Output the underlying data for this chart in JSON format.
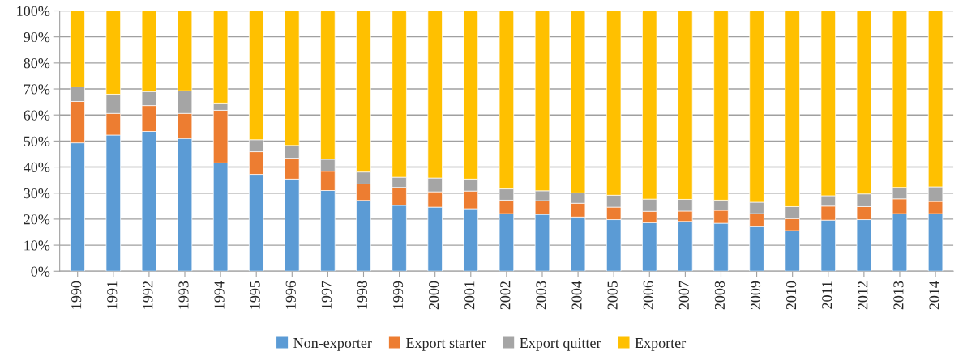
{
  "chart_data": {
    "type": "bar",
    "stacked": true,
    "categories": [
      "1990",
      "1991",
      "1992",
      "1993",
      "1994",
      "1995",
      "1996",
      "1997",
      "1998",
      "1999",
      "2000",
      "2001",
      "2002",
      "2003",
      "2004",
      "2005",
      "2006",
      "2007",
      "2008",
      "2009",
      "2010",
      "2011",
      "2012",
      "2013",
      "2014"
    ],
    "series": [
      {
        "name": "Non-exporter",
        "color": "#5b9bd5",
        "values": [
          49.3,
          52.3,
          53.7,
          51.0,
          41.6,
          37.2,
          35.4,
          31.0,
          27.2,
          25.3,
          24.6,
          24.0,
          22.1,
          21.8,
          20.8,
          19.8,
          18.6,
          19.1,
          18.4,
          17.1,
          15.6,
          19.6,
          19.8,
          22.1,
          22.1
        ]
      },
      {
        "name": "Export starter",
        "color": "#ed7d31",
        "values": [
          15.9,
          8.3,
          9.9,
          9.6,
          20.2,
          8.7,
          8.0,
          7.4,
          6.3,
          6.9,
          5.9,
          6.8,
          5.2,
          5.3,
          5.3,
          4.8,
          4.4,
          4.0,
          5.0,
          5.0,
          4.6,
          5.4,
          5.0,
          5.7,
          4.7
        ]
      },
      {
        "name": "Export quitter",
        "color": "#a5a5a5",
        "values": [
          5.6,
          7.4,
          5.4,
          8.7,
          2.8,
          4.6,
          4.9,
          4.6,
          4.6,
          3.9,
          5.3,
          4.6,
          4.3,
          3.8,
          4.0,
          4.6,
          4.7,
          4.5,
          3.9,
          4.4,
          4.6,
          4.0,
          4.9,
          4.4,
          5.6
        ]
      },
      {
        "name": "Exporter",
        "color": "#ffc000",
        "values": [
          29.2,
          32.0,
          31.0,
          30.7,
          35.4,
          49.5,
          51.7,
          57.0,
          61.9,
          63.9,
          64.2,
          64.6,
          68.4,
          69.1,
          69.9,
          70.8,
          72.3,
          72.4,
          72.7,
          73.5,
          75.2,
          71.0,
          70.3,
          67.8,
          67.6
        ]
      }
    ],
    "ylim": [
      0,
      100
    ],
    "yticks": [
      {
        "value": 0,
        "label": "0%"
      },
      {
        "value": 10,
        "label": "10%"
      },
      {
        "value": 20,
        "label": "20%"
      },
      {
        "value": 30,
        "label": "30%"
      },
      {
        "value": 40,
        "label": "40%"
      },
      {
        "value": 50,
        "label": "50%"
      },
      {
        "value": 60,
        "label": "60%"
      },
      {
        "value": 70,
        "label": "70%"
      },
      {
        "value": 80,
        "label": "80%"
      },
      {
        "value": 90,
        "label": "90%"
      },
      {
        "value": 100,
        "label": "100%"
      }
    ],
    "grid": "y",
    "legend": "bottom"
  }
}
